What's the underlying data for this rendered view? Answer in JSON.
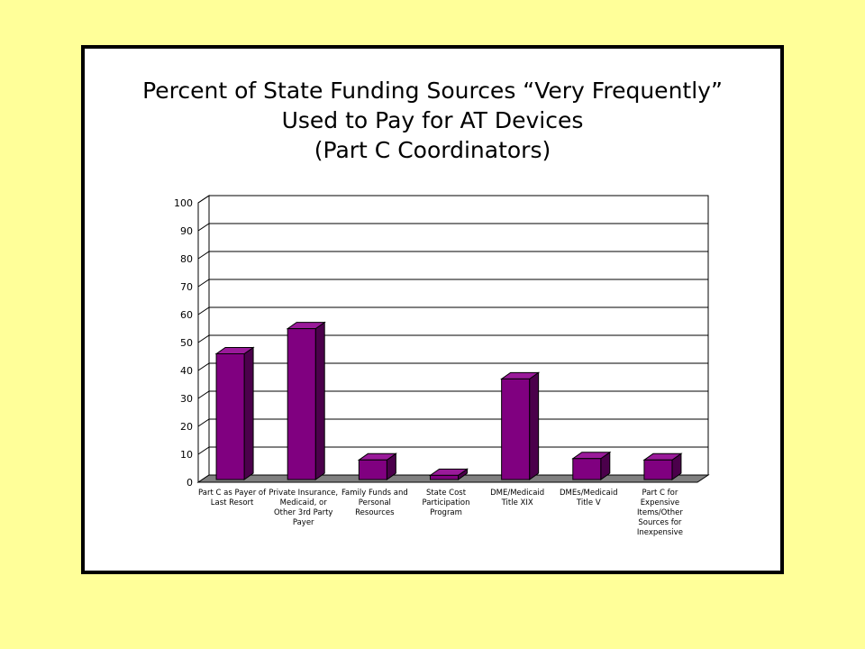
{
  "colors": {
    "background": "#FFFF99",
    "panel": "#FFFFFF",
    "bar_front": "#800080",
    "bar_side": "#4B004B",
    "bar_top": "#9A1A9A",
    "floor": "#808080"
  },
  "chart_data": {
    "type": "bar",
    "title_lines": [
      "Percent of State Funding Sources “Very Frequently”",
      "Used to Pay for AT Devices",
      "(Part C Coordinators)"
    ],
    "categories": [
      [
        "Part C as Payer of",
        "Last Resort"
      ],
      [
        "Private Insurance,",
        "Medicaid, or",
        "Other 3rd Party",
        "Payer"
      ],
      [
        "Family Funds and",
        "Personal",
        "Resources"
      ],
      [
        "State Cost",
        "Participation",
        "Program"
      ],
      [
        "DME/Medicaid",
        "Title XIX"
      ],
      [
        "DMEs/Medicaid",
        "Title V"
      ],
      [
        "Part C for",
        "Expensive",
        "Items/Other",
        "Sources for",
        "Inexpensive"
      ]
    ],
    "values": [
      45,
      54,
      7,
      1.5,
      36,
      7.5,
      7
    ],
    "ylim": [
      0,
      100
    ],
    "yticks": [
      0,
      10,
      20,
      30,
      40,
      50,
      60,
      70,
      80,
      90,
      100
    ],
    "grid": true,
    "style": "3d"
  }
}
